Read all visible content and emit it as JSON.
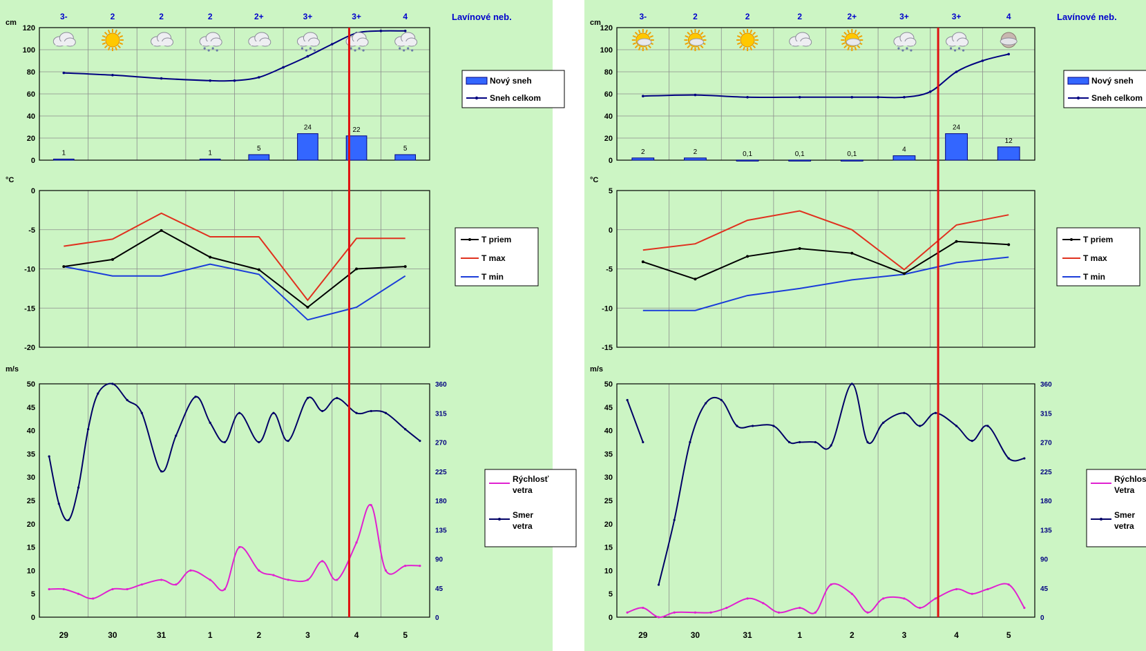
{
  "colors": {
    "background": "#ccf5c4",
    "new_snow": "#3366ff",
    "total_snow": "#000080",
    "t_avg": "#000000",
    "t_max": "#e0301e",
    "t_min": "#1a3cd9",
    "wind_speed": "#e020d0",
    "wind_dir": "#000066",
    "marker": "#e01010",
    "danger_text": "#0000cc"
  },
  "icons": {
    "cloudy": "cloud-icon",
    "sunny": "sun-icon",
    "snow": "snow-cloud-icon",
    "partly_cloudy": "partly-cloudy-icon",
    "fog": "fog-icon"
  },
  "chart_data": [
    {
      "panel": "left",
      "days": [
        "29",
        "30",
        "31",
        "1",
        "2",
        "3",
        "4",
        "5"
      ],
      "marker_position": 6.35,
      "avalanche": {
        "title": "Lavínové neb.",
        "levels": [
          "3-",
          "2",
          "2",
          "2",
          "2+",
          "3+",
          "3+",
          "4"
        ]
      },
      "weather_icons": [
        "cloudy",
        "sunny",
        "cloudy",
        "snow",
        "cloudy",
        "snow",
        "snow",
        "snow"
      ],
      "snow": {
        "type": "bar+line",
        "unit": "cm",
        "ylim": [
          0,
          120
        ],
        "yticks": [
          0,
          20,
          40,
          60,
          80,
          100,
          120
        ],
        "legend": [
          "Nový sneh",
          "Sneh celkom"
        ],
        "new_snow": [
          1,
          null,
          null,
          1,
          5,
          24,
          22,
          5
        ],
        "new_snow_labels": [
          "1",
          "",
          "",
          "1",
          "5",
          "24",
          "22",
          "5"
        ],
        "total_snow_x": [
          0,
          1,
          2,
          3,
          3.5,
          4,
          4.5,
          5,
          5.5,
          6,
          6.5,
          7
        ],
        "total_snow": [
          79,
          77,
          74,
          72,
          72,
          75,
          84,
          94,
          105,
          115,
          117,
          117
        ]
      },
      "temperature": {
        "type": "line",
        "unit": "°C",
        "ylim": [
          -20,
          0
        ],
        "yticks": [
          0,
          -5,
          -10,
          -15,
          -20
        ],
        "legend": [
          "T priem",
          "T max",
          "T min"
        ],
        "t_avg": [
          -9.7,
          -8.8,
          -5.1,
          -8.5,
          -10.1,
          -14.9,
          -10.0,
          -9.7
        ],
        "t_max": [
          -7.1,
          -6.2,
          -2.9,
          -5.9,
          -5.9,
          -14.0,
          -6.1,
          -6.1
        ],
        "t_min": [
          -9.7,
          -10.9,
          -10.9,
          -9.4,
          -10.7,
          -16.5,
          -14.9,
          -10.9
        ]
      },
      "wind": {
        "type": "line",
        "unit": "m/s",
        "ylim": [
          0,
          50
        ],
        "yticks": [
          0,
          5,
          10,
          15,
          20,
          25,
          30,
          35,
          40,
          45,
          50
        ],
        "y2lim": [
          0,
          360
        ],
        "y2ticks": [
          0,
          45,
          90,
          135,
          180,
          225,
          270,
          315,
          360
        ],
        "legend": [
          "Rýchlosť vetra",
          "Smer vetra"
        ],
        "speed_x": [
          -0.3,
          0,
          0.3,
          0.6,
          1,
          1.3,
          1.6,
          2,
          2.3,
          2.6,
          3,
          3.3,
          3.6,
          4,
          4.3,
          4.6,
          5,
          5.3,
          5.6,
          6,
          6.3,
          6.6,
          7,
          7.3
        ],
        "speed": [
          6,
          6,
          5,
          4,
          6,
          6,
          7,
          8,
          7,
          10,
          8,
          6,
          15,
          10,
          9,
          8,
          8,
          12,
          8,
          16,
          24,
          10,
          11,
          11
        ],
        "dir_x": [
          -0.3,
          -0.1,
          0.1,
          0.3,
          0.5,
          0.7,
          1,
          1.3,
          1.6,
          2,
          2.3,
          2.7,
          3,
          3.3,
          3.6,
          4,
          4.3,
          4.6,
          5,
          5.3,
          5.6,
          6,
          6.3,
          6.6,
          7,
          7.3
        ],
        "dir": [
          248,
          175,
          150,
          200,
          290,
          345,
          360,
          335,
          315,
          225,
          280,
          340,
          300,
          270,
          315,
          270,
          315,
          272,
          338,
          318,
          338,
          315,
          318,
          315,
          290,
          272
        ]
      }
    },
    {
      "panel": "right",
      "days": [
        "29",
        "30",
        "31",
        "1",
        "2",
        "3",
        "4",
        "5"
      ],
      "marker_position": 6.15,
      "avalanche": {
        "title": "Lavínové neb.",
        "levels": [
          "3-",
          "2",
          "2",
          "2",
          "2+",
          "3+",
          "3+",
          "4"
        ]
      },
      "weather_icons": [
        "partly_cloudy",
        "partly_cloudy",
        "sunny",
        "cloudy",
        "partly_cloudy",
        "snow",
        "snow",
        "fog"
      ],
      "snow": {
        "type": "bar+line",
        "unit": "cm",
        "ylim": [
          0,
          120
        ],
        "yticks": [
          0,
          20,
          40,
          60,
          80,
          100,
          120
        ],
        "legend": [
          "Nový sneh",
          "Sneh celkom"
        ],
        "new_snow": [
          2,
          2,
          0.1,
          0.1,
          0.1,
          4,
          24,
          12
        ],
        "new_snow_labels": [
          "2",
          "2",
          "0,1",
          "0,1",
          "0,1",
          "4",
          "24",
          "12"
        ],
        "total_snow_x": [
          0,
          1,
          2,
          3,
          4,
          4.5,
          5,
          5.5,
          6,
          6.5,
          7
        ],
        "total_snow": [
          58,
          59,
          57,
          57,
          57,
          57,
          57,
          62,
          80,
          90,
          96
        ]
      },
      "temperature": {
        "type": "line",
        "unit": "°C",
        "ylim": [
          -15,
          5
        ],
        "yticks": [
          5,
          0,
          -5,
          -10,
          -15
        ],
        "legend": [
          "T priem",
          "T max",
          "T min"
        ],
        "t_avg": [
          -4.1,
          -6.3,
          -3.4,
          -2.4,
          -3.0,
          -5.6,
          -1.5,
          -1.9
        ],
        "t_max": [
          -2.6,
          -1.8,
          1.2,
          2.4,
          0.0,
          -5.1,
          0.6,
          1.9
        ],
        "t_min": [
          -10.3,
          -10.3,
          -8.4,
          -7.5,
          -6.4,
          -5.7,
          -4.2,
          -3.5
        ]
      },
      "wind": {
        "type": "line",
        "unit": "m/s",
        "ylim": [
          0,
          50
        ],
        "yticks": [
          0,
          5,
          10,
          15,
          20,
          25,
          30,
          35,
          40,
          45,
          50
        ],
        "y2lim": [
          0,
          360
        ],
        "y2ticks": [
          0,
          45,
          90,
          135,
          180,
          225,
          270,
          315,
          360
        ],
        "legend": [
          "Rýchlosť Vetra",
          "Smer vetra"
        ],
        "speed_x": [
          -0.3,
          0,
          0.3,
          0.6,
          1,
          1.3,
          1.6,
          2,
          2.3,
          2.6,
          3,
          3.3,
          3.6,
          4,
          4.3,
          4.6,
          5,
          5.3,
          5.6,
          6,
          6.3,
          6.6,
          7,
          7.3
        ],
        "speed": [
          1,
          2,
          0,
          1,
          1,
          1,
          2,
          4,
          3,
          1,
          2,
          1,
          7,
          5,
          1,
          4,
          4,
          2,
          4,
          6,
          5,
          6,
          7,
          2
        ],
        "dir_x": [
          -0.3,
          0,
          0.3,
          0.6,
          0.9,
          1.2,
          1.5,
          1.8,
          2.1,
          2.5,
          2.8,
          3,
          3.3,
          3.6,
          4,
          4.3,
          4.6,
          5,
          5.3,
          5.6,
          6,
          6.3,
          6.6,
          7,
          7.3
        ],
        "dir_segments": [
          [
            0,
            2
          ],
          [
            2,
            25
          ]
        ],
        "dir": [
          335,
          270,
          50,
          150,
          270,
          330,
          335,
          295,
          295,
          295,
          270,
          270,
          270,
          265,
          360,
          270,
          300,
          315,
          295,
          315,
          295,
          272,
          295,
          245,
          245
        ]
      }
    }
  ]
}
